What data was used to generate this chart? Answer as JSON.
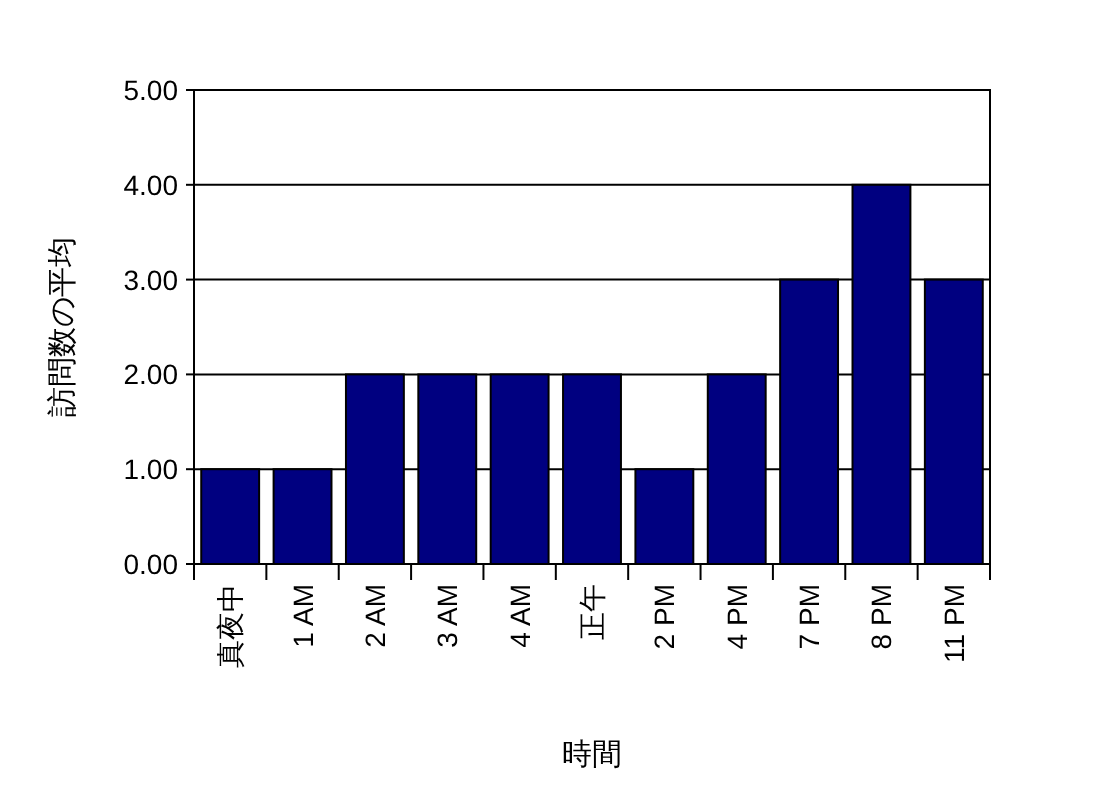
{
  "chart_data": {
    "type": "bar",
    "xlabel": "時間",
    "ylabel": "訪問数の平均",
    "categories": [
      "真夜中",
      "1 AM",
      "2 AM",
      "3 AM",
      "4 AM",
      "正午",
      "2 PM",
      "4 PM",
      "7 PM",
      "8 PM",
      "11 PM"
    ],
    "values": [
      1,
      1,
      2,
      2,
      2,
      2,
      1,
      2,
      3,
      4,
      3
    ],
    "color": "#000080",
    "ylim": [
      0,
      5
    ],
    "yticks": [
      {
        "value": 0,
        "label": "0.00"
      },
      {
        "value": 1,
        "label": "1.00"
      },
      {
        "value": 2,
        "label": "2.00"
      },
      {
        "value": 3,
        "label": "3.00"
      },
      {
        "value": 4,
        "label": "4.00"
      },
      {
        "value": 5,
        "label": "5.00"
      }
    ],
    "grid": "y"
  }
}
